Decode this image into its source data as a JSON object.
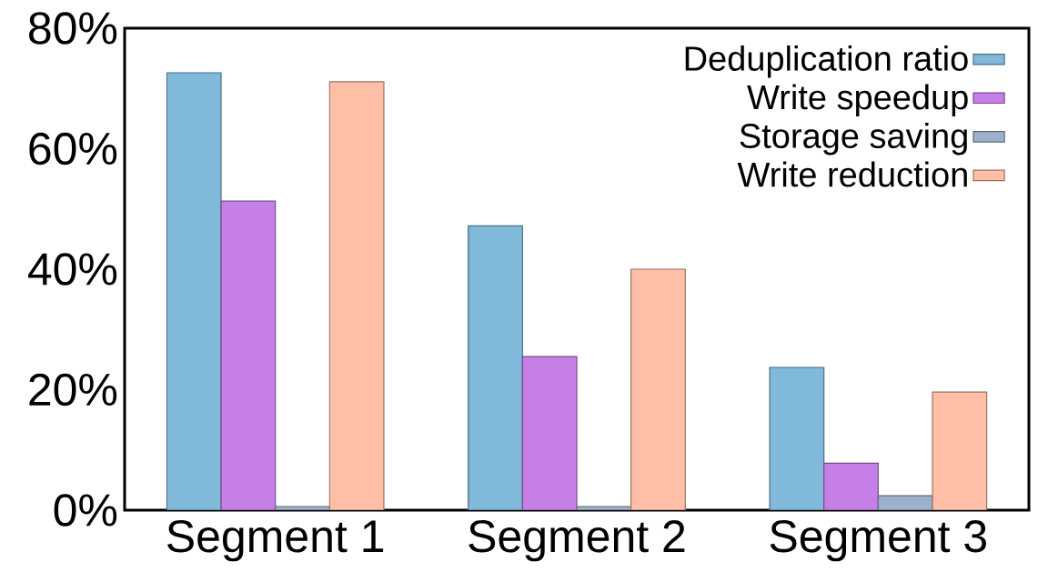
{
  "chart_data": {
    "type": "bar",
    "categories": [
      "Segment 1",
      "Segment 2",
      "Segment 3"
    ],
    "series": [
      {
        "name": "Deduplication ratio",
        "color": "#80b9da",
        "values": [
          72.6,
          47.2,
          23.7
        ]
      },
      {
        "name": "Write speedup",
        "color": "#c77fe8",
        "values": [
          51.3,
          25.5,
          7.8
        ]
      },
      {
        "name": "Storage saving",
        "color": "#9fb0cc",
        "values": [
          0.6,
          0.6,
          2.4
        ]
      },
      {
        "name": "Write reduction",
        "color": "#ffbfa6",
        "values": [
          71.1,
          40.0,
          19.6
        ]
      }
    ],
    "ylim": [
      0,
      80
    ],
    "yticks": [
      {
        "value": 0,
        "label": "0%"
      },
      {
        "value": 20,
        "label": "20%"
      },
      {
        "value": 40,
        "label": "40%"
      },
      {
        "value": 60,
        "label": "60%"
      },
      {
        "value": 80,
        "label": "80%"
      }
    ],
    "grid": false,
    "legend": "top right"
  }
}
